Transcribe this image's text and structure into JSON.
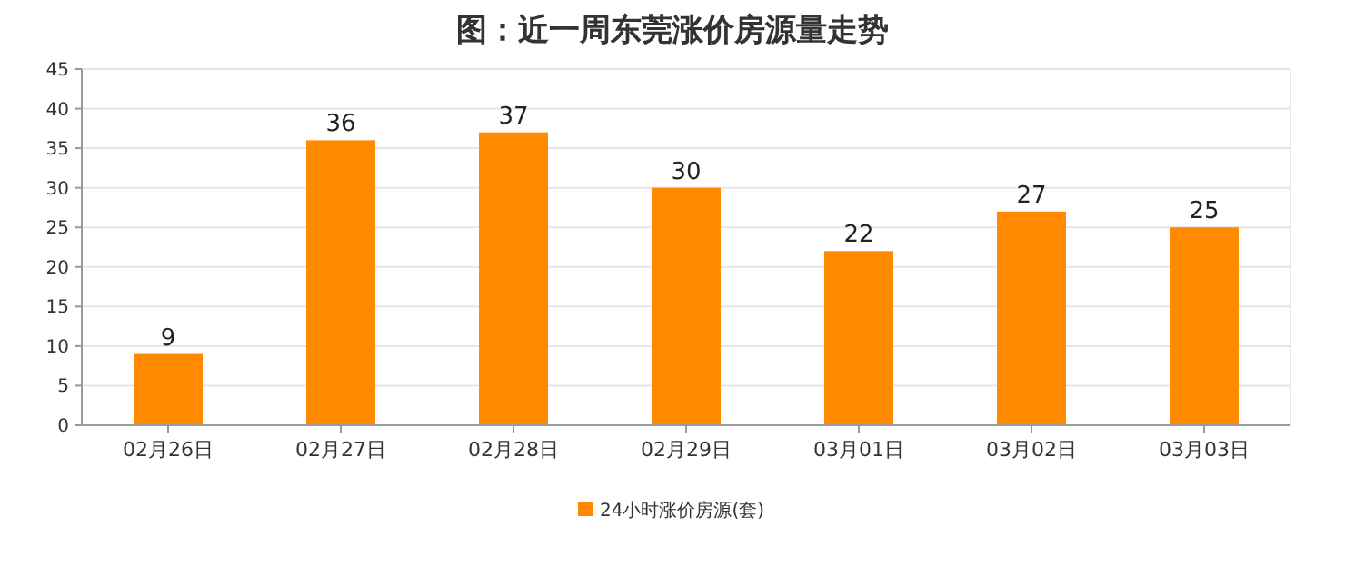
{
  "chart_data": {
    "type": "bar",
    "title": "图：近一周东莞涨价房源量走势",
    "categories": [
      "02月26日",
      "02月27日",
      "02月28日",
      "02月29日",
      "03月01日",
      "03月02日",
      "03月03日"
    ],
    "series": [
      {
        "name": "24小时涨价房源(套)",
        "color": "#ff8a00",
        "values": [
          9,
          36,
          37,
          30,
          22,
          27,
          25
        ]
      }
    ],
    "ylim": [
      0,
      45
    ],
    "yticks": [
      0,
      5,
      10,
      15,
      20,
      25,
      30,
      35,
      40,
      45
    ],
    "grid": "y",
    "legend": "bottom",
    "data_labels": true
  }
}
